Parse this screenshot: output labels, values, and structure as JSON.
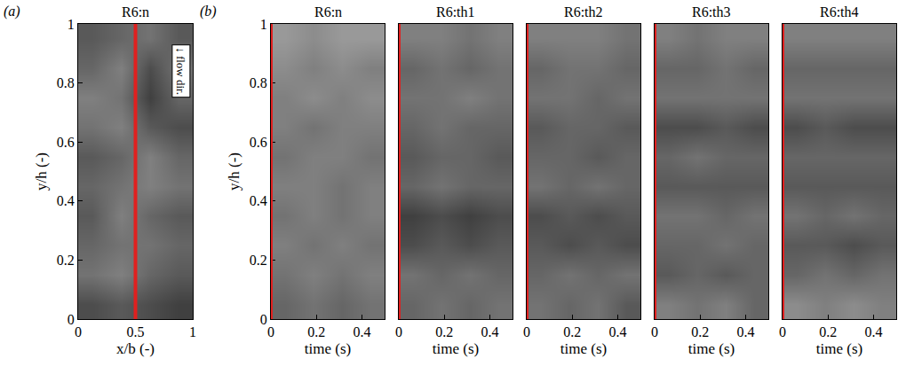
{
  "chart_data": [
    {
      "type": "heatmap",
      "panel": "(a)",
      "title": "R6:n",
      "xlabel": "x/b (-)",
      "ylabel": "y/h (-)",
      "xlim": [
        0,
        1
      ],
      "ylim": [
        0,
        1
      ],
      "xticks": [
        0,
        0.5,
        1
      ],
      "yticks": [
        0,
        0.2,
        0.4,
        0.6,
        0.8,
        1
      ],
      "zlim": [
        0,
        1
      ],
      "annotation": "↓ flow dir.",
      "red_line": {
        "x": 0.5,
        "color": "#e0201f"
      },
      "cells": [
        [
          0.3,
          0.35,
          0.3,
          0.25
        ],
        [
          0.45,
          0.5,
          0.4,
          0.35
        ],
        [
          0.4,
          0.45,
          0.45,
          0.4
        ],
        [
          0.35,
          0.5,
          0.4,
          0.35
        ],
        [
          0.4,
          0.45,
          0.5,
          0.45
        ],
        [
          0.35,
          0.4,
          0.5,
          0.4
        ],
        [
          0.45,
          0.5,
          0.35,
          0.3
        ],
        [
          0.5,
          0.45,
          0.25,
          0.4
        ],
        [
          0.4,
          0.5,
          0.3,
          0.45
        ],
        [
          0.35,
          0.4,
          0.45,
          0.35
        ]
      ]
    },
    {
      "type": "heatmap",
      "panel": "(b)",
      "title": "R6:n",
      "xlabel": "time (s)",
      "ylabel": "y/h (-)",
      "xlim": [
        0,
        0.5
      ],
      "ylim": [
        0,
        1
      ],
      "xticks": [
        0,
        0.2,
        0.4
      ],
      "yticks": [
        0,
        0.2,
        0.4,
        0.6,
        0.8,
        1
      ],
      "zlim": [
        0,
        1
      ],
      "red_line": {
        "x": 0,
        "color": "#e0201f"
      },
      "cells": [
        [
          0.4,
          0.45,
          0.4,
          0.45
        ],
        [
          0.45,
          0.5,
          0.45,
          0.5
        ],
        [
          0.5,
          0.45,
          0.5,
          0.45
        ],
        [
          0.45,
          0.5,
          0.45,
          0.5
        ],
        [
          0.5,
          0.5,
          0.45,
          0.5
        ],
        [
          0.45,
          0.5,
          0.5,
          0.45
        ],
        [
          0.5,
          0.45,
          0.5,
          0.5
        ],
        [
          0.5,
          0.55,
          0.5,
          0.55
        ],
        [
          0.55,
          0.5,
          0.55,
          0.5
        ],
        [
          0.6,
          0.55,
          0.6,
          0.6
        ]
      ]
    },
    {
      "type": "heatmap",
      "title": "R6:th1",
      "xlabel": "time (s)",
      "xlim": [
        0,
        0.5
      ],
      "ylim": [
        0,
        1
      ],
      "xticks": [
        0,
        0.2,
        0.4
      ],
      "zlim": [
        0,
        1
      ],
      "red_line": {
        "x": 0,
        "color": "#e0201f"
      },
      "cells": [
        [
          0.4,
          0.45,
          0.4,
          0.45
        ],
        [
          0.45,
          0.4,
          0.45,
          0.4
        ],
        [
          0.3,
          0.35,
          0.3,
          0.35
        ],
        [
          0.25,
          0.3,
          0.25,
          0.3
        ],
        [
          0.4,
          0.45,
          0.4,
          0.4
        ],
        [
          0.35,
          0.4,
          0.4,
          0.35
        ],
        [
          0.4,
          0.45,
          0.4,
          0.4
        ],
        [
          0.45,
          0.45,
          0.5,
          0.45
        ],
        [
          0.4,
          0.45,
          0.4,
          0.45
        ],
        [
          0.5,
          0.5,
          0.45,
          0.5
        ]
      ]
    },
    {
      "type": "heatmap",
      "title": "R6:th2",
      "xlabel": "time (s)",
      "xlim": [
        0,
        0.5
      ],
      "ylim": [
        0,
        1
      ],
      "xticks": [
        0,
        0.2,
        0.4
      ],
      "zlim": [
        0,
        1
      ],
      "red_line": {
        "x": 0,
        "color": "#e0201f"
      },
      "cells": [
        [
          0.45,
          0.4,
          0.45,
          0.35
        ],
        [
          0.4,
          0.45,
          0.4,
          0.45
        ],
        [
          0.35,
          0.3,
          0.35,
          0.3
        ],
        [
          0.3,
          0.35,
          0.3,
          0.35
        ],
        [
          0.45,
          0.4,
          0.45,
          0.4
        ],
        [
          0.4,
          0.4,
          0.35,
          0.4
        ],
        [
          0.35,
          0.4,
          0.4,
          0.35
        ],
        [
          0.45,
          0.45,
          0.4,
          0.45
        ],
        [
          0.4,
          0.45,
          0.45,
          0.4
        ],
        [
          0.5,
          0.5,
          0.5,
          0.45
        ]
      ]
    },
    {
      "type": "heatmap",
      "title": "R6:th3",
      "xlabel": "time (s)",
      "xlim": [
        0,
        0.5
      ],
      "ylim": [
        0,
        1
      ],
      "xticks": [
        0,
        0.2,
        0.4
      ],
      "zlim": [
        0,
        1
      ],
      "red_line": {
        "x": 0,
        "color": "#e0201f"
      },
      "cells": [
        [
          0.5,
          0.45,
          0.5,
          0.4
        ],
        [
          0.35,
          0.4,
          0.35,
          0.4
        ],
        [
          0.4,
          0.4,
          0.45,
          0.4
        ],
        [
          0.45,
          0.45,
          0.4,
          0.45
        ],
        [
          0.35,
          0.35,
          0.35,
          0.35
        ],
        [
          0.4,
          0.45,
          0.4,
          0.4
        ],
        [
          0.3,
          0.3,
          0.35,
          0.3
        ],
        [
          0.45,
          0.45,
          0.45,
          0.45
        ],
        [
          0.4,
          0.4,
          0.45,
          0.4
        ],
        [
          0.5,
          0.45,
          0.5,
          0.5
        ]
      ]
    },
    {
      "type": "heatmap",
      "title": "R6:th4",
      "xlabel": "time (s)",
      "xlim": [
        0,
        0.5
      ],
      "ylim": [
        0,
        1
      ],
      "xticks": [
        0,
        0.2,
        0.4
      ],
      "zlim": [
        0,
        1
      ],
      "red_line": {
        "x": 0,
        "color": "#e0201f"
      },
      "cells": [
        [
          0.55,
          0.5,
          0.55,
          0.5
        ],
        [
          0.4,
          0.45,
          0.4,
          0.45
        ],
        [
          0.35,
          0.35,
          0.3,
          0.35
        ],
        [
          0.45,
          0.4,
          0.45,
          0.4
        ],
        [
          0.35,
          0.35,
          0.35,
          0.35
        ],
        [
          0.4,
          0.4,
          0.4,
          0.4
        ],
        [
          0.3,
          0.35,
          0.3,
          0.3
        ],
        [
          0.45,
          0.45,
          0.45,
          0.45
        ],
        [
          0.4,
          0.4,
          0.4,
          0.4
        ],
        [
          0.5,
          0.5,
          0.5,
          0.5
        ]
      ]
    }
  ]
}
